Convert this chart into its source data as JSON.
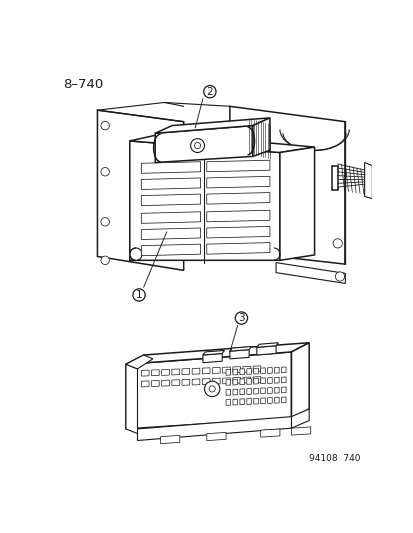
{
  "page_label": "8–740",
  "footer_label": "94108  740",
  "bg_color": "#ffffff",
  "line_color": "#1a1a1a",
  "lw_main": 1.1,
  "lw_med": 0.8,
  "lw_thin": 0.55,
  "title_fontsize": 9.5,
  "footer_fontsize": 6.5,
  "callout_r": 8
}
